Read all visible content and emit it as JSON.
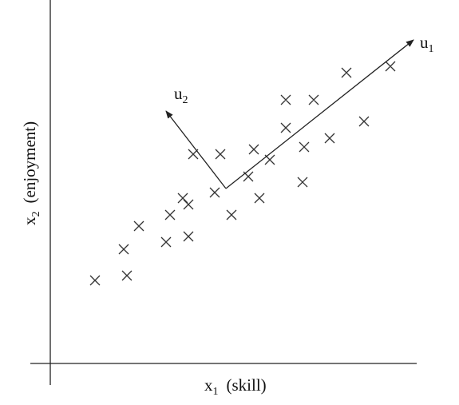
{
  "x_axis_label": {
    "symbol": "x",
    "subscript": "1",
    "text": "(skill)"
  },
  "y_axis_label": {
    "symbol": "x",
    "subscript": "2",
    "text": "(enjoyment)"
  },
  "vectors": [
    {
      "symbol": "u",
      "subscript": "1"
    },
    {
      "symbol": "u",
      "subscript": "2"
    }
  ]
}
